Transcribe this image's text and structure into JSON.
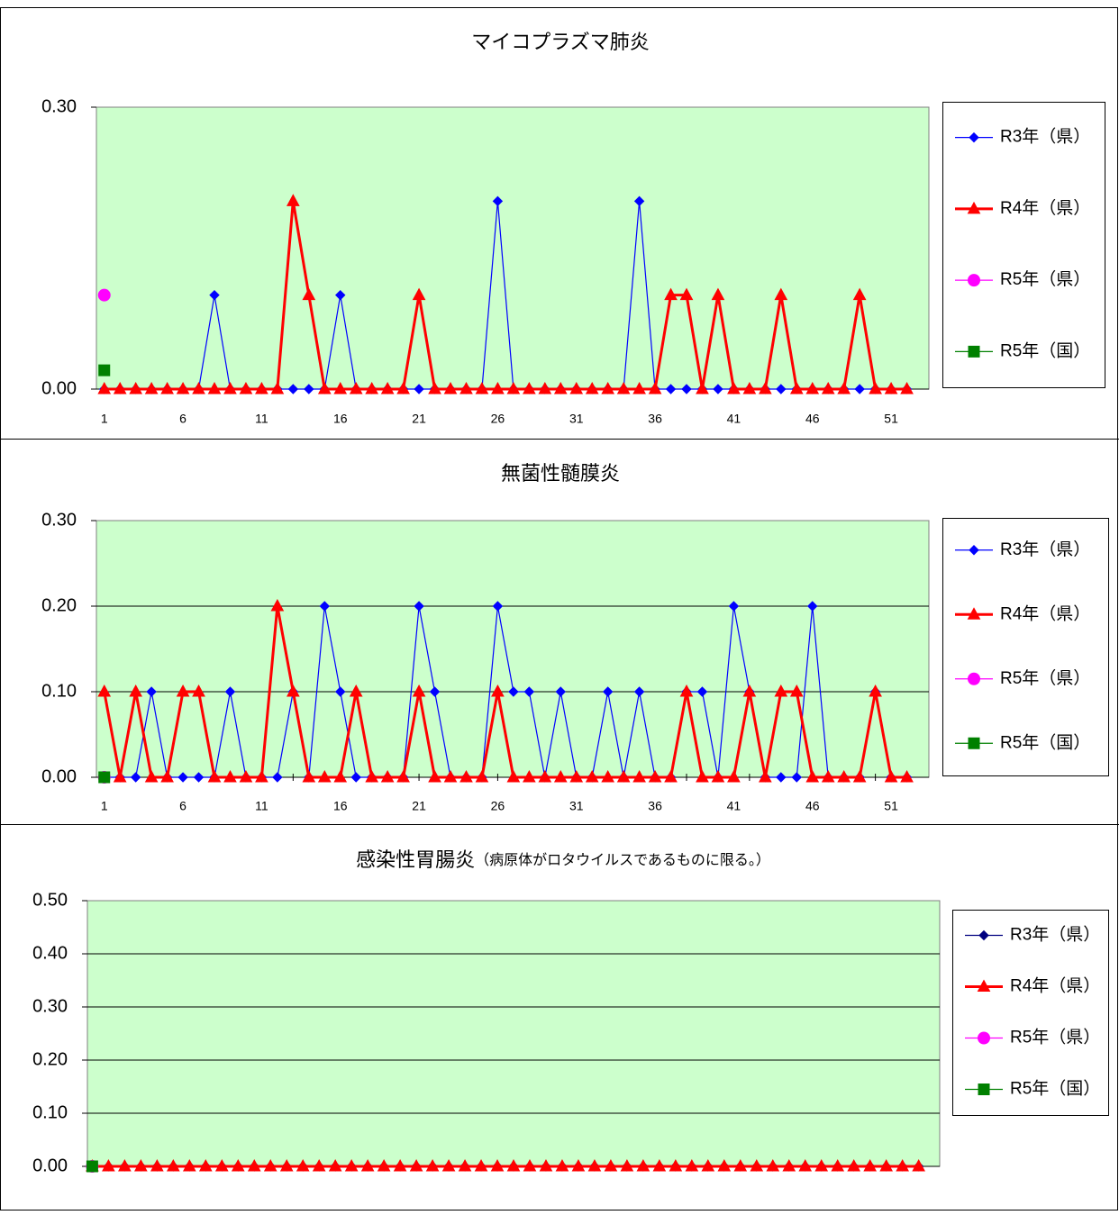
{
  "chart_data": [
    {
      "type": "line",
      "title": "マイコプラズマ肺炎",
      "x": [
        1,
        2,
        3,
        4,
        5,
        6,
        7,
        8,
        9,
        10,
        11,
        12,
        13,
        14,
        15,
        16,
        17,
        18,
        19,
        20,
        21,
        22,
        23,
        24,
        25,
        26,
        27,
        28,
        29,
        30,
        31,
        32,
        33,
        34,
        35,
        36,
        37,
        38,
        39,
        40,
        41,
        42,
        43,
        44,
        45,
        46,
        47,
        48,
        49,
        50,
        51,
        52
      ],
      "xlim": [
        0.5,
        53.4
      ],
      "xticks": [
        1,
        6,
        11,
        16,
        21,
        26,
        31,
        36,
        41,
        46,
        51
      ],
      "ylim": [
        0,
        0.3
      ],
      "yticks": [
        {
          "value": 0,
          "label": "0.00"
        },
        {
          "value": 0.3,
          "label": "0.30"
        }
      ],
      "grid": false,
      "legend": "right",
      "series": [
        {
          "name": "R3年（県）",
          "color": "#0000ff",
          "marker": "diamond",
          "width": 1.2,
          "values": [
            0,
            0,
            0,
            0,
            0,
            0,
            0,
            0.1,
            0,
            0,
            0,
            0,
            0,
            0,
            0,
            0.1,
            0,
            0,
            0,
            0,
            0,
            0,
            0,
            0,
            0,
            0.2,
            0,
            0,
            0,
            0,
            0,
            0,
            0,
            0,
            0.2,
            0,
            0,
            0,
            0,
            0,
            0,
            0,
            0,
            0,
            0,
            0,
            0,
            0,
            0,
            0,
            0,
            0
          ]
        },
        {
          "name": "R4年（県）",
          "color": "#ff0000",
          "marker": "triangle",
          "width": 3,
          "values": [
            0,
            0,
            0,
            0,
            0,
            0,
            0,
            0,
            0,
            0,
            0,
            0,
            0.2,
            0.1,
            0,
            0,
            0,
            0,
            0,
            0,
            0.1,
            0,
            0,
            0,
            0,
            0,
            0,
            0,
            0,
            0,
            0,
            0,
            0,
            0,
            0,
            0,
            0.1,
            0.1,
            0,
            0.1,
            0,
            0,
            0,
            0.1,
            0,
            0,
            0,
            0,
            0.1,
            0,
            0,
            0
          ]
        },
        {
          "name": "R5年（県）",
          "color": "#ff00ff",
          "marker": "circle",
          "width": 1.2,
          "values": [
            0.1,
            null,
            null,
            null,
            null,
            null,
            null,
            null,
            null,
            null,
            null,
            null,
            null,
            null,
            null,
            null,
            null,
            null,
            null,
            null,
            null,
            null,
            null,
            null,
            null,
            null,
            null,
            null,
            null,
            null,
            null,
            null,
            null,
            null,
            null,
            null,
            null,
            null,
            null,
            null,
            null,
            null,
            null,
            null,
            null,
            null,
            null,
            null,
            null,
            null,
            null,
            null
          ]
        },
        {
          "name": "R5年（国）",
          "color": "#008000",
          "marker": "square",
          "width": 1.2,
          "values": [
            0.02,
            null,
            null,
            null,
            null,
            null,
            null,
            null,
            null,
            null,
            null,
            null,
            null,
            null,
            null,
            null,
            null,
            null,
            null,
            null,
            null,
            null,
            null,
            null,
            null,
            null,
            null,
            null,
            null,
            null,
            null,
            null,
            null,
            null,
            null,
            null,
            null,
            null,
            null,
            null,
            null,
            null,
            null,
            null,
            null,
            null,
            null,
            null,
            null,
            null,
            null,
            null
          ]
        }
      ]
    },
    {
      "type": "line",
      "title": "無菌性髄膜炎",
      "x": [
        1,
        2,
        3,
        4,
        5,
        6,
        7,
        8,
        9,
        10,
        11,
        12,
        13,
        14,
        15,
        16,
        17,
        18,
        19,
        20,
        21,
        22,
        23,
        24,
        25,
        26,
        27,
        28,
        29,
        30,
        31,
        32,
        33,
        34,
        35,
        36,
        37,
        38,
        39,
        40,
        41,
        42,
        43,
        44,
        45,
        46,
        47,
        48,
        49,
        50,
        51,
        52
      ],
      "xlim": [
        0.5,
        53.4
      ],
      "xticks": [
        1,
        6,
        11,
        16,
        21,
        26,
        31,
        36,
        41,
        46,
        51
      ],
      "ylim": [
        0,
        0.3
      ],
      "yticks": [
        {
          "value": 0,
          "label": "0.00"
        },
        {
          "value": 0.1,
          "label": "0.10"
        },
        {
          "value": 0.2,
          "label": "0.20"
        },
        {
          "value": 0.3,
          "label": "0.30"
        }
      ],
      "grid": true,
      "legend": "right",
      "series": [
        {
          "name": "R3年（県）",
          "color": "#0000ff",
          "marker": "diamond",
          "width": 1.2,
          "values": [
            0,
            0,
            0,
            0.1,
            0,
            0,
            0,
            0,
            0.1,
            0,
            0,
            0,
            0.1,
            0,
            0.2,
            0.1,
            0,
            0,
            0,
            0,
            0.2,
            0.1,
            0,
            0,
            0,
            0.2,
            0.1,
            0.1,
            0,
            0.1,
            0,
            0,
            0.1,
            0,
            0.1,
            0,
            0,
            0.1,
            0.1,
            0,
            0.2,
            0.1,
            0,
            0,
            0,
            0.2,
            0,
            0,
            0,
            0.1,
            0,
            0
          ]
        },
        {
          "name": "R4年（県）",
          "color": "#ff0000",
          "marker": "triangle",
          "width": 3,
          "values": [
            0.1,
            0,
            0.1,
            0,
            0,
            0.1,
            0.1,
            0,
            0,
            0,
            0,
            0.2,
            0.1,
            0,
            0,
            0,
            0.1,
            0,
            0,
            0,
            0.1,
            0,
            0,
            0,
            0,
            0.1,
            0,
            0,
            0,
            0,
            0,
            0,
            0,
            0,
            0,
            0,
            0,
            0.1,
            0,
            0,
            0,
            0.1,
            0,
            0.1,
            0.1,
            0,
            0,
            0,
            0,
            0.1,
            0,
            0
          ]
        },
        {
          "name": "R5年（県）",
          "color": "#ff00ff",
          "marker": "circle",
          "width": 1.2,
          "values": [
            0,
            null,
            null,
            null,
            null,
            null,
            null,
            null,
            null,
            null,
            null,
            null,
            null,
            null,
            null,
            null,
            null,
            null,
            null,
            null,
            null,
            null,
            null,
            null,
            null,
            null,
            null,
            null,
            null,
            null,
            null,
            null,
            null,
            null,
            null,
            null,
            null,
            null,
            null,
            null,
            null,
            null,
            null,
            null,
            null,
            null,
            null,
            null,
            null,
            null,
            null,
            null
          ]
        },
        {
          "name": "R5年（国）",
          "color": "#008000",
          "marker": "square",
          "width": 1.2,
          "values": [
            0,
            null,
            null,
            null,
            null,
            null,
            null,
            null,
            null,
            null,
            null,
            null,
            null,
            null,
            null,
            null,
            null,
            null,
            null,
            null,
            null,
            null,
            null,
            null,
            null,
            null,
            null,
            null,
            null,
            null,
            null,
            null,
            null,
            null,
            null,
            null,
            null,
            null,
            null,
            null,
            null,
            null,
            null,
            null,
            null,
            null,
            null,
            null,
            null,
            null,
            null,
            null
          ]
        }
      ]
    },
    {
      "type": "line",
      "title": "感染性胃腸炎",
      "subtitle": "（病原体がロタウイルスであるものに限る。）",
      "x": [
        1,
        2,
        3,
        4,
        5,
        6,
        7,
        8,
        9,
        10,
        11,
        12,
        13,
        14,
        15,
        16,
        17,
        18,
        19,
        20,
        21,
        22,
        23,
        24,
        25,
        26,
        27,
        28,
        29,
        30,
        31,
        32,
        33,
        34,
        35,
        36,
        37,
        38,
        39,
        40,
        41,
        42,
        43,
        44,
        45,
        46,
        47,
        48,
        49,
        50,
        51,
        52
      ],
      "xlim": [
        0.7,
        53.3
      ],
      "ylim": [
        0,
        0.5
      ],
      "yticks": [
        {
          "value": 0,
          "label": "0.00"
        },
        {
          "value": 0.1,
          "label": "0.10"
        },
        {
          "value": 0.2,
          "label": "0.20"
        },
        {
          "value": 0.3,
          "label": "0.30"
        },
        {
          "value": 0.4,
          "label": "0.40"
        },
        {
          "value": 0.5,
          "label": "0.50"
        }
      ],
      "grid": true,
      "legend": "right",
      "series": [
        {
          "name": "R3年（県）",
          "color": "#000080",
          "marker": "diamond",
          "width": 1.2,
          "values": [
            0,
            0,
            0,
            0,
            0,
            0,
            0,
            0,
            0,
            0,
            0,
            0,
            0,
            0,
            0,
            0,
            0,
            0,
            0,
            0,
            0,
            0,
            0,
            0,
            0,
            0,
            0,
            0,
            0,
            0,
            0,
            0,
            0,
            0,
            0,
            0,
            0,
            0,
            0,
            0,
            0,
            0,
            0,
            0,
            0,
            0,
            0,
            0,
            0,
            0,
            0,
            0
          ]
        },
        {
          "name": "R4年（県）",
          "color": "#ff0000",
          "marker": "triangle",
          "width": 3,
          "values": [
            0,
            0,
            0,
            0,
            0,
            0,
            0,
            0,
            0,
            0,
            0,
            0,
            0,
            0,
            0,
            0,
            0,
            0,
            0,
            0,
            0,
            0,
            0,
            0,
            0,
            0,
            0,
            0,
            0,
            0,
            0,
            0,
            0,
            0,
            0,
            0,
            0,
            0,
            0,
            0,
            0,
            0,
            0,
            0,
            0,
            0,
            0,
            0,
            0,
            0,
            0,
            0
          ]
        },
        {
          "name": "R5年（県）",
          "color": "#ff00ff",
          "marker": "circle",
          "width": 1.2,
          "values": [
            0,
            null,
            null,
            null,
            null,
            null,
            null,
            null,
            null,
            null,
            null,
            null,
            null,
            null,
            null,
            null,
            null,
            null,
            null,
            null,
            null,
            null,
            null,
            null,
            null,
            null,
            null,
            null,
            null,
            null,
            null,
            null,
            null,
            null,
            null,
            null,
            null,
            null,
            null,
            null,
            null,
            null,
            null,
            null,
            null,
            null,
            null,
            null,
            null,
            null,
            null,
            null
          ]
        },
        {
          "name": "R5年（国）",
          "color": "#008000",
          "marker": "square",
          "width": 1.2,
          "values": [
            0,
            null,
            null,
            null,
            null,
            null,
            null,
            null,
            null,
            null,
            null,
            null,
            null,
            null,
            null,
            null,
            null,
            null,
            null,
            null,
            null,
            null,
            null,
            null,
            null,
            null,
            null,
            null,
            null,
            null,
            null,
            null,
            null,
            null,
            null,
            null,
            null,
            null,
            null,
            null,
            null,
            null,
            null,
            null,
            null,
            null,
            null,
            null,
            null,
            null,
            null,
            null
          ]
        }
      ]
    }
  ]
}
